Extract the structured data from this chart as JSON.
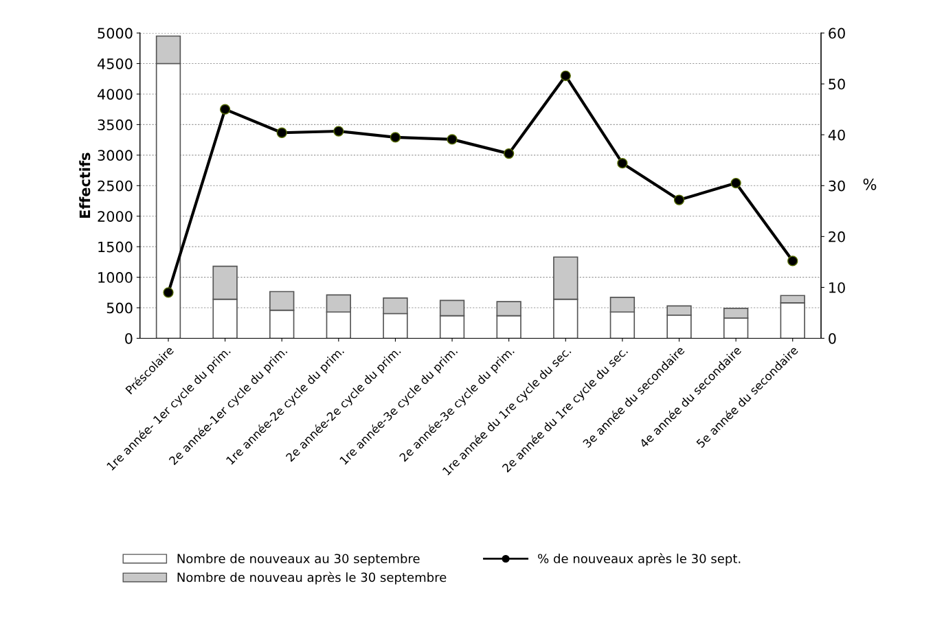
{
  "chart_data": {
    "type": "bar",
    "stacked": true,
    "ylabel": "Effectifs",
    "y2label": "%",
    "categories": [
      "Préscolaire",
      "1re année- 1er cycle du prim.",
      "2e année-1er cycle du prim.",
      "1re année-2e cycle du prim.",
      "2e année-2e cycle du prim.",
      "1re année-3e cycle du prim.",
      "2e année-3e cycle du prim.",
      "1re année du 1re cycle du sec.",
      "2e année du 1re cycle du sec.",
      "3e année du secondaire",
      "4e année du secondaire",
      "5e année du secondaire"
    ],
    "series": [
      {
        "name": "Nombre de nouveaux au 30 septembre",
        "color": "#ffffff",
        "values": [
          4500,
          640,
          460,
          430,
          405,
          370,
          370,
          640,
          430,
          380,
          330,
          580
        ]
      },
      {
        "name": "Nombre de nouveau après le 30 septembre",
        "color": "#c8c8c8",
        "values": [
          450,
          540,
          305,
          280,
          255,
          250,
          230,
          690,
          240,
          150,
          160,
          120
        ]
      },
      {
        "name": "% de nouveaux après le 30 sept.",
        "type": "line",
        "axis": "y2",
        "color": "#000000",
        "marker": "circle",
        "values": [
          9,
          45,
          40.4,
          40.7,
          39.5,
          39.1,
          36.3,
          51.6,
          34.4,
          27.2,
          30.5,
          15.2
        ]
      }
    ],
    "ylim": [
      0,
      5000
    ],
    "yticks": [
      0,
      500,
      1000,
      1500,
      2000,
      2500,
      3000,
      3500,
      4000,
      4500,
      5000
    ],
    "y2lim": [
      0,
      60
    ],
    "y2ticks": [
      0,
      10,
      20,
      30,
      40,
      50,
      60
    ],
    "grid": "y",
    "legend": "bottom"
  }
}
